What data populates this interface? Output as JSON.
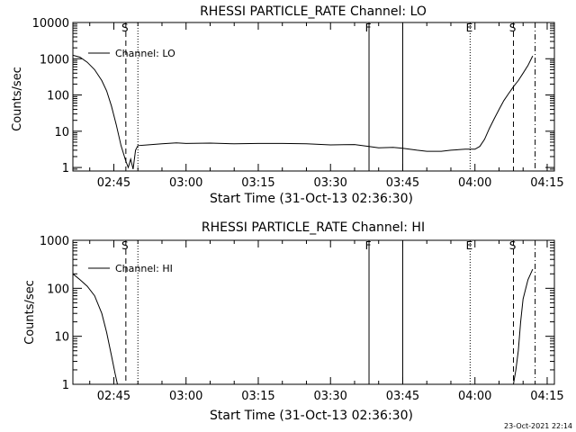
{
  "footer_timestamp": "23-Oct-2021 22:14",
  "chart_data": [
    {
      "type": "line",
      "title": "RHESSI PARTICLE_RATE Channel: LO",
      "xlabel": "Start Time (31-Oct-13 02:36:30)",
      "ylabel": "Counts/sec",
      "yscale": "log",
      "xlim": [
        "02:36:30",
        "04:16:30"
      ],
      "ylim": [
        0.8,
        10000
      ],
      "xticks": [
        "02:45",
        "03:00",
        "03:15",
        "03:30",
        "03:45",
        "04:00",
        "04:15"
      ],
      "yticks": [
        "1",
        "10",
        "100",
        "1000",
        "10000"
      ],
      "legend": "upper-left",
      "series": [
        {
          "name": "Channel: LO",
          "x": [
            "02:36:30",
            "02:38:00",
            "02:39:30",
            "02:41:00",
            "02:42:30",
            "02:43:30",
            "02:44:30",
            "02:45:30",
            "02:46:30",
            "02:47:30",
            "02:48:00",
            "02:48:30",
            "02:49:00",
            "02:49:30",
            "02:50:00",
            "02:52:00",
            "02:55:00",
            "02:58:00",
            "03:00:00",
            "03:05:00",
            "03:10:00",
            "03:15:00",
            "03:20:00",
            "03:25:00",
            "03:30:00",
            "03:35:00",
            "03:38:00",
            "03:40:00",
            "03:43:00",
            "03:45:00",
            "03:48:00",
            "03:50:00",
            "03:53:00",
            "03:55:00",
            "03:58:00",
            "04:00:00",
            "04:01:00",
            "04:02:00",
            "04:03:00",
            "04:04:00",
            "04:05:00",
            "04:06:00",
            "04:07:00",
            "04:08:00",
            "04:09:00",
            "04:10:00",
            "04:11:00",
            "04:12:00"
          ],
          "y": [
            1250,
            1100,
            800,
            500,
            250,
            130,
            50,
            15,
            4,
            1.5,
            1.0,
            1.7,
            0.9,
            3.0,
            4.0,
            4.2,
            4.5,
            4.8,
            4.6,
            4.7,
            4.5,
            4.6,
            4.6,
            4.5,
            4.2,
            4.3,
            3.8,
            3.5,
            3.6,
            3.4,
            3.0,
            2.8,
            2.8,
            3.0,
            3.2,
            3.2,
            3.8,
            6,
            12,
            22,
            40,
            70,
            110,
            170,
            250,
            400,
            650,
            1200
          ]
        }
      ],
      "vlines": [
        {
          "x": "02:47:30",
          "label": "S",
          "style": "dashed"
        },
        {
          "x": "02:50:00",
          "label": "",
          "style": "dotted"
        },
        {
          "x": "03:38:00",
          "label": "F",
          "style": "solid"
        },
        {
          "x": "03:45:00",
          "label": "",
          "style": "solid"
        },
        {
          "x": "03:59:00",
          "label": "E",
          "style": "dotted"
        },
        {
          "x": "04:08:00",
          "label": "S",
          "style": "dashed"
        },
        {
          "x": "04:12:30",
          "label": "",
          "style": "dashdot"
        }
      ]
    },
    {
      "type": "line",
      "title": "RHESSI PARTICLE_RATE Channel: HI",
      "xlabel": "Start Time (31-Oct-13 02:36:30)",
      "ylabel": "Counts/sec",
      "yscale": "log",
      "xlim": [
        "02:36:30",
        "04:16:30"
      ],
      "ylim": [
        1,
        1000
      ],
      "xticks": [
        "02:45",
        "03:00",
        "03:15",
        "03:30",
        "03:45",
        "04:00",
        "04:15"
      ],
      "yticks": [
        "1",
        "10",
        "100",
        "1000"
      ],
      "legend": "upper-left",
      "series": [
        {
          "name": "Channel: HI",
          "x": [
            "02:36:30",
            "02:38:00",
            "02:39:30",
            "02:41:00",
            "02:42:30",
            "02:43:30",
            "02:44:30",
            "02:45:15",
            "02:45:45",
            "02:46:00",
            "04:07:30",
            "04:08:00",
            "04:08:30",
            "04:09:00",
            "04:09:30",
            "04:10:00",
            "04:11:00",
            "04:12:00"
          ],
          "y": [
            200,
            150,
            110,
            70,
            30,
            12,
            4,
            1.7,
            1.0,
            0.9,
            0.9,
            1.0,
            2,
            5,
            20,
            60,
            150,
            250
          ]
        }
      ],
      "vlines": [
        {
          "x": "02:47:30",
          "label": "S",
          "style": "dashed"
        },
        {
          "x": "02:50:00",
          "label": "",
          "style": "dotted"
        },
        {
          "x": "03:38:00",
          "label": "F",
          "style": "solid"
        },
        {
          "x": "03:45:00",
          "label": "",
          "style": "solid"
        },
        {
          "x": "03:59:00",
          "label": "E",
          "style": "dotted"
        },
        {
          "x": "04:08:00",
          "label": "S",
          "style": "dashed"
        },
        {
          "x": "04:12:30",
          "label": "",
          "style": "dashdot"
        }
      ]
    }
  ]
}
